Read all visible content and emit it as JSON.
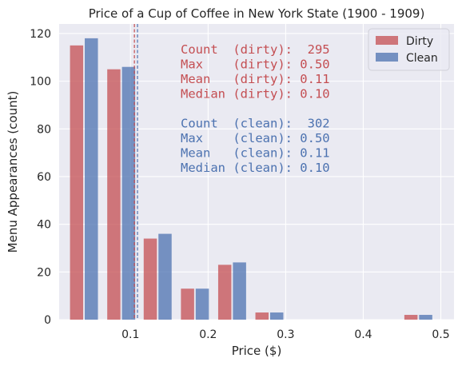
{
  "chart_data": {
    "type": "bar",
    "title": "Price of a Cup of Coffee in New York State (1900 - 1909)",
    "xlabel": "Price ($)",
    "ylabel": "Menu Appearances (count)",
    "xlim": [
      0.008,
      0.517
    ],
    "ylim": [
      0,
      124
    ],
    "xticks": [
      0.1,
      0.2,
      0.3,
      0.4,
      0.5
    ],
    "xtick_labels": [
      "0.1",
      "0.2",
      "0.3",
      "0.4",
      "0.5"
    ],
    "yticks": [
      0,
      20,
      40,
      60,
      80,
      100,
      120
    ],
    "ytick_labels": [
      "0",
      "20",
      "40",
      "60",
      "80",
      "100",
      "120"
    ],
    "grid": true,
    "legend_position": "top-right",
    "bin_centers": [
      0.04,
      0.088,
      0.135,
      0.183,
      0.231,
      0.279,
      0.327,
      0.375,
      0.423,
      0.471
    ],
    "series": [
      {
        "name": "Dirty",
        "color": "#c44e52",
        "offset": -0.0095,
        "values": [
          115,
          105,
          34,
          13,
          23,
          3,
          0,
          0,
          0,
          2
        ]
      },
      {
        "name": "Clean",
        "color": "#4c72b0",
        "offset": 0.0095,
        "values": [
          118,
          106,
          36,
          13,
          24,
          3,
          0,
          0,
          0,
          2
        ]
      }
    ],
    "vlines": [
      {
        "x": 0.105,
        "color": "#c44e52",
        "style": "dashed"
      },
      {
        "x": 0.109,
        "color": "#4c72b0",
        "style": "dashed"
      }
    ],
    "annotations": [
      {
        "text": "Count  (dirty):  295",
        "color": "#c44e52"
      },
      {
        "text": "Max    (dirty): 0.50",
        "color": "#c44e52"
      },
      {
        "text": "Mean   (dirty): 0.11",
        "color": "#c44e52"
      },
      {
        "text": "Median (dirty): 0.10",
        "color": "#c44e52"
      },
      {
        "text": "",
        "color": "#4c72b0"
      },
      {
        "text": "Count  (clean):  302",
        "color": "#4c72b0"
      },
      {
        "text": "Max    (clean): 0.50",
        "color": "#4c72b0"
      },
      {
        "text": "Mean   (clean): 0.11",
        "color": "#4c72b0"
      },
      {
        "text": "Median (clean): 0.10",
        "color": "#4c72b0"
      }
    ]
  }
}
